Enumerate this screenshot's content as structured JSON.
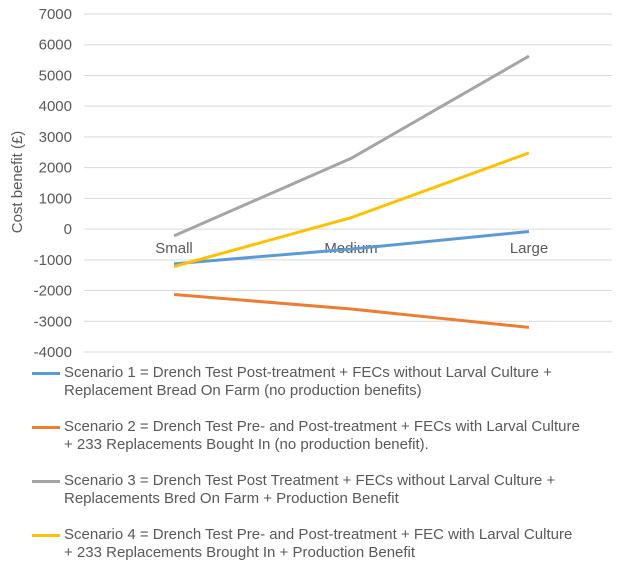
{
  "chart_data": {
    "type": "line",
    "categories": [
      "Small",
      "Medium",
      "Large"
    ],
    "ylabel": "Cost benefit (£)",
    "xlabel": "",
    "title": "",
    "ylim": [
      -4000,
      7000
    ],
    "yticks": [
      7000,
      6000,
      5000,
      4000,
      3000,
      2000,
      1000,
      0,
      -1000,
      -2000,
      -3000,
      -4000
    ],
    "grid": true,
    "legend_position": "bottom",
    "series": [
      {
        "name": "Scenario 1 = Drench Test Post-treatment + FECs without Larval Culture +\nReplacement Bread On Farm (no production benefits)",
        "values": [
          -1130,
          -650,
          -80
        ],
        "color": "#5B9BD5"
      },
      {
        "name": "Scenario 2 = Drench Test Pre- and Post-treatment  + FECs with Larval Culture\n+ 233 Replacements Bought In (no production benefit).",
        "values": [
          -2130,
          -2600,
          -3200
        ],
        "color": "#ED7D31"
      },
      {
        "name": "Scenario 3 = Drench Test Post Treatment  + FECs without Larval Culture +\nReplacements Bred On Farm + Production Benefit",
        "values": [
          -220,
          2300,
          5630
        ],
        "color": "#A5A5A5"
      },
      {
        "name": "Scenario 4 = Drench Test Pre- and Post-treatment + FEC with Larval Culture\n+ 233 Replacements Brought In + Production Benefit",
        "values": [
          -1220,
          370,
          2480
        ],
        "color": "#FFC000"
      }
    ]
  }
}
